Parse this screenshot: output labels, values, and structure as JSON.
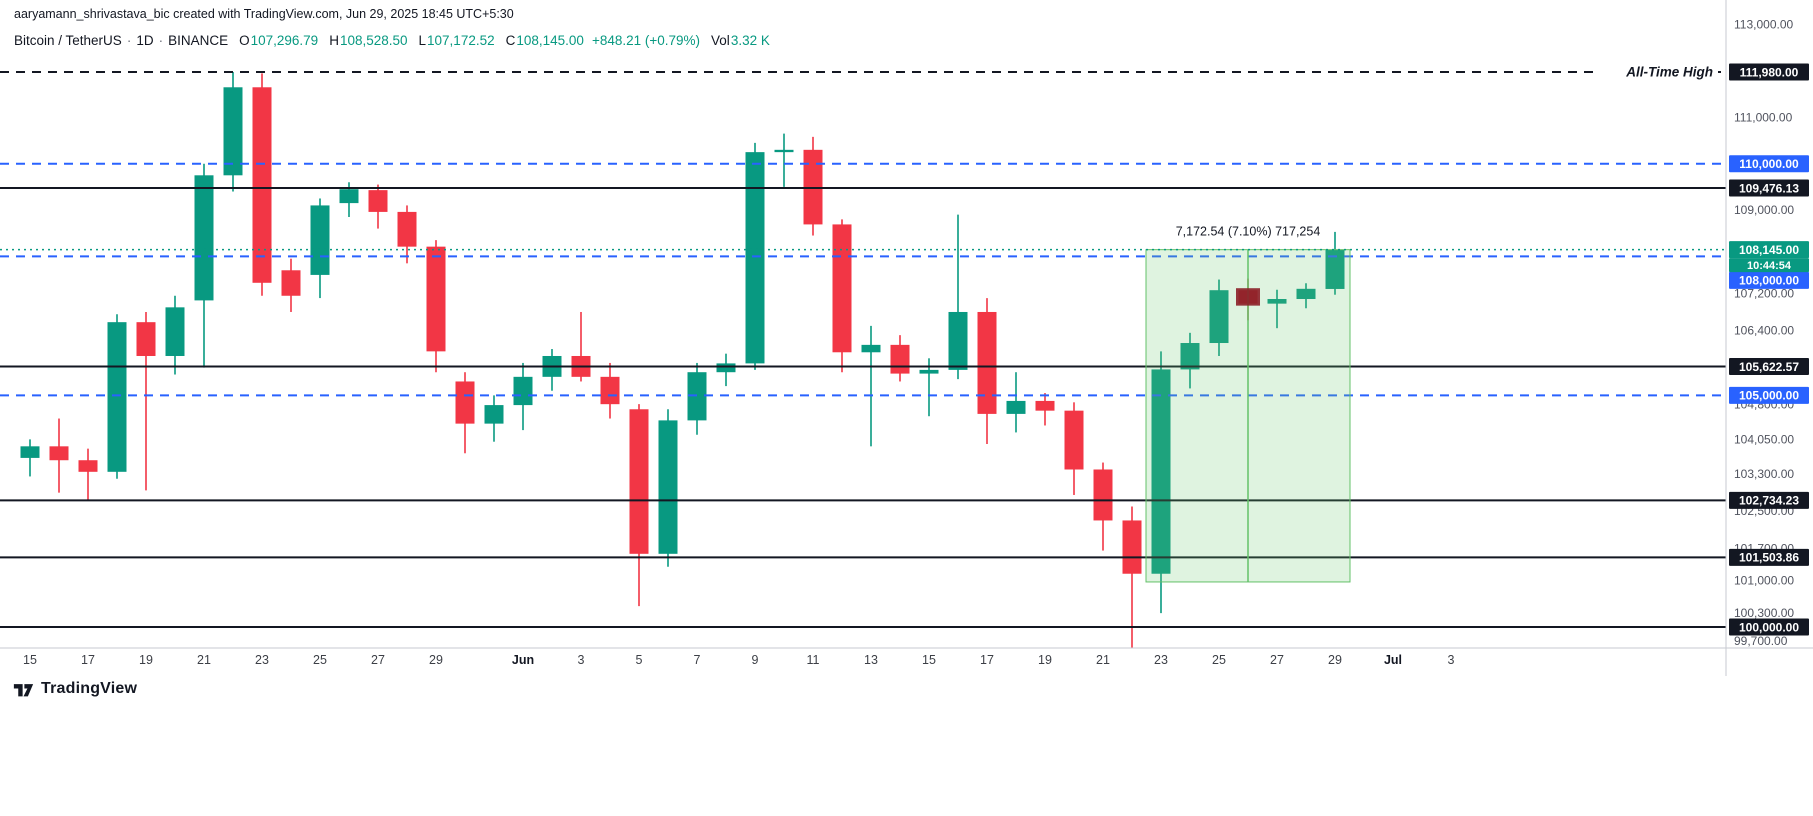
{
  "attribution": "aaryamann_shrivastava_bic created with TradingView.com, Jun 29, 2025 18:45 UTC+5:30",
  "legend": {
    "sep": "·",
    "ohlc": [
      {
        "label": "O",
        "value": "107,296.79"
      },
      {
        "label": "H",
        "value": "108,528.50"
      },
      {
        "label": "L",
        "value": "107,172.52"
      },
      {
        "label": "C",
        "value": "108,145.00"
      }
    ],
    "change": "+848.21 (+0.79%)",
    "vol_label": "Vol",
    "vol_value": "3.32 K"
  },
  "logo": {
    "text": "TradingView"
  },
  "colors": {
    "up": "#089981",
    "down": "#f23645",
    "blue": "#2962ff",
    "black": "#131722",
    "axis_text": "#50535e",
    "range_fill": "rgba(109,200,113,0.22)",
    "range_stroke": "#63c168",
    "selected_candle": "#8c1f28"
  },
  "chart_data": {
    "type": "candlestick",
    "symbol": "Bitcoin / TetherUS",
    "interval": "1D",
    "exchange": "BINANCE",
    "ylim": [
      99700,
      113000
    ],
    "dates": [
      "May 15",
      "May 16",
      "May 17",
      "May 18",
      "May 19",
      "May 20",
      "May 21",
      "May 22",
      "May 23",
      "May 24",
      "May 25",
      "May 26",
      "May 27",
      "May 28",
      "May 29",
      "May 30",
      "May 31",
      "Jun 1",
      "Jun 2",
      "Jun 3",
      "Jun 4",
      "Jun 5",
      "Jun 6",
      "Jun 7",
      "Jun 8",
      "Jun 9",
      "Jun 10",
      "Jun 11",
      "Jun 12",
      "Jun 13",
      "Jun 14",
      "Jun 15",
      "Jun 16",
      "Jun 17",
      "Jun 18",
      "Jun 19",
      "Jun 20",
      "Jun 21",
      "Jun 22",
      "Jun 23",
      "Jun 24",
      "Jun 25",
      "Jun 26",
      "Jun 27",
      "Jun 28",
      "Jun 29"
    ],
    "ohlc": [
      [
        103650,
        104050,
        103250,
        103900
      ],
      [
        103900,
        104500,
        102900,
        103600
      ],
      [
        103600,
        103850,
        102750,
        103350
      ],
      [
        103350,
        106750,
        103200,
        106580
      ],
      [
        106580,
        106800,
        102950,
        105850
      ],
      [
        105850,
        107150,
        105450,
        106900
      ],
      [
        107050,
        110000,
        105600,
        109750
      ],
      [
        109750,
        111980,
        109400,
        111650
      ],
      [
        111650,
        111950,
        107150,
        107430
      ],
      [
        107700,
        107950,
        106800,
        107150
      ],
      [
        107600,
        109250,
        107100,
        109100
      ],
      [
        109150,
        109600,
        108850,
        109450
      ],
      [
        109430,
        109550,
        108600,
        108960
      ],
      [
        108960,
        109100,
        107850,
        108210
      ],
      [
        108210,
        108350,
        105500,
        105950
      ],
      [
        105300,
        105500,
        103750,
        104390
      ],
      [
        104390,
        105000,
        104000,
        104790
      ],
      [
        104790,
        105700,
        104250,
        105400
      ],
      [
        105400,
        106000,
        105100,
        105850
      ],
      [
        105850,
        106800,
        105300,
        105400
      ],
      [
        105400,
        105700,
        104500,
        104810
      ],
      [
        104700,
        104810,
        100450,
        101580
      ],
      [
        101580,
        104700,
        101300,
        104460
      ],
      [
        104460,
        105700,
        104150,
        105500
      ],
      [
        105500,
        105900,
        105200,
        105690
      ],
      [
        105690,
        110450,
        105550,
        110250
      ],
      [
        110250,
        110650,
        109500,
        110300
      ],
      [
        110300,
        110580,
        108450,
        108690
      ],
      [
        108690,
        108800,
        105500,
        105930
      ],
      [
        105930,
        106500,
        103900,
        106090
      ],
      [
        106090,
        106300,
        105300,
        105470
      ],
      [
        105470,
        105800,
        104550,
        105550
      ],
      [
        105550,
        108900,
        105350,
        106800
      ],
      [
        106800,
        107100,
        103950,
        104600
      ],
      [
        104600,
        105500,
        104200,
        104880
      ],
      [
        104880,
        105050,
        104350,
        104670
      ],
      [
        104670,
        104850,
        102850,
        103400
      ],
      [
        103400,
        103550,
        101650,
        102300
      ],
      [
        102300,
        102600,
        99550,
        101150
      ],
      [
        101150,
        105950,
        100300,
        105560
      ],
      [
        105560,
        106350,
        105150,
        106130
      ],
      [
        106130,
        107500,
        105850,
        107270
      ],
      [
        107270,
        107520,
        106620,
        106980
      ],
      [
        106980,
        107280,
        106450,
        107080
      ],
      [
        107080,
        107420,
        106880,
        107300
      ],
      [
        107296.79,
        108528.5,
        107172.52,
        108145
      ]
    ],
    "selected_index": 42,
    "levels": [
      {
        "label": "111,980.00",
        "price": 111980,
        "style": "dashed",
        "color": "black",
        "tag": "All-Time High"
      },
      {
        "label": "110,000.00",
        "price": 110000,
        "style": "dashed",
        "color": "blue"
      },
      {
        "label": "109,476.13",
        "price": 109476.13,
        "style": "solid",
        "color": "black"
      },
      {
        "label": "108,000.00",
        "price": 108000,
        "style": "dashed",
        "color": "blue",
        "badge_dy": 24
      },
      {
        "label": "105,622.57",
        "price": 105622.57,
        "style": "solid",
        "color": "black"
      },
      {
        "label": "105,000.00",
        "price": 105000,
        "style": "dashed",
        "color": "blue"
      },
      {
        "label": "102,734.23",
        "price": 102734.23,
        "style": "solid",
        "color": "black"
      },
      {
        "label": "101,503.86",
        "price": 101503.86,
        "style": "solid",
        "color": "black"
      },
      {
        "label": "100,000.00",
        "price": 100000,
        "style": "solid",
        "color": "black"
      }
    ],
    "current_price": {
      "value": "108,145.00",
      "price": 108145,
      "countdown": "10:44:54"
    },
    "range_tool": {
      "label": "7,172.54 (7.10%) 717,254",
      "from_index": 39,
      "to_index": 45,
      "from_price": 100972.46,
      "to_price": 108145
    },
    "price_axis_ticks": [
      {
        "label": "113,000.00",
        "price": 113000
      },
      {
        "label": "111,000.00",
        "price": 111000
      },
      {
        "label": "109,000.00",
        "price": 109000
      },
      {
        "label": "107,200.00",
        "price": 107200
      },
      {
        "label": "106,400.00",
        "price": 106400
      },
      {
        "label": "104,800.00",
        "price": 104800
      },
      {
        "label": "104,050.00",
        "price": 104050
      },
      {
        "label": "103,300.00",
        "price": 103300
      },
      {
        "label": "102,500.00",
        "price": 102500
      },
      {
        "label": "101,700.00",
        "price": 101700
      },
      {
        "label": "101,000.00",
        "price": 101000
      },
      {
        "label": "100,300.00",
        "price": 100300
      },
      {
        "label": "99,700.00",
        "price": 99700
      }
    ],
    "time_axis_ticks": [
      {
        "label": "15",
        "i": 0
      },
      {
        "label": "17",
        "i": 2
      },
      {
        "label": "19",
        "i": 4
      },
      {
        "label": "21",
        "i": 6
      },
      {
        "label": "23",
        "i": 8
      },
      {
        "label": "25",
        "i": 10
      },
      {
        "label": "27",
        "i": 12
      },
      {
        "label": "29",
        "i": 14
      },
      {
        "label": "Jun",
        "i": 17,
        "month": true
      },
      {
        "label": "3",
        "i": 19
      },
      {
        "label": "5",
        "i": 21
      },
      {
        "label": "7",
        "i": 23
      },
      {
        "label": "9",
        "i": 25
      },
      {
        "label": "11",
        "i": 27
      },
      {
        "label": "13",
        "i": 29
      },
      {
        "label": "15",
        "i": 31
      },
      {
        "label": "17",
        "i": 33
      },
      {
        "label": "19",
        "i": 35
      },
      {
        "label": "21",
        "i": 37
      },
      {
        "label": "23",
        "i": 39
      },
      {
        "label": "25",
        "i": 41
      },
      {
        "label": "27",
        "i": 43
      },
      {
        "label": "29",
        "i": 45
      },
      {
        "label": "Jul",
        "i": 47,
        "month": true
      },
      {
        "label": "3",
        "i": 49
      }
    ]
  }
}
